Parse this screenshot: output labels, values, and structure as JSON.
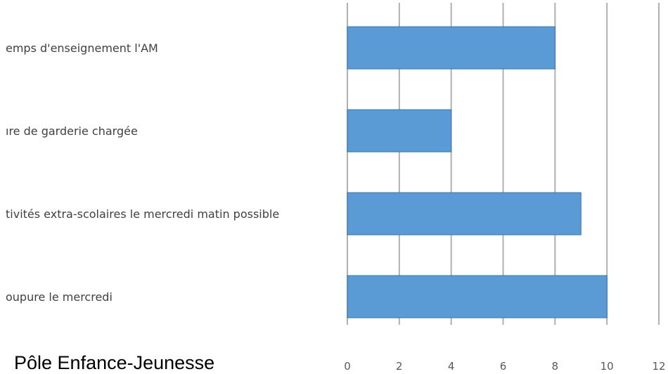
{
  "footer": {
    "text": "Pôle Enfance-Jeunesse"
  },
  "chart_data": {
    "type": "bar",
    "orientation": "horizontal",
    "categories": [
      "emps d'enseignement l'AM",
      "ıre de garderie chargée",
      "tivités extra-scolaires le mercredi matin possible",
      "oupure le mercredi"
    ],
    "values": [
      8,
      4,
      9,
      10
    ],
    "xlim": [
      0,
      12
    ],
    "xticks": [
      "0",
      "2",
      "4",
      "6",
      "8",
      "10",
      "12"
    ],
    "grid": "vertical",
    "bar_color": "#5b9bd5",
    "bar_edge_color": "#2e75b6",
    "grid_color": "#b0b0b0",
    "legend": "none"
  }
}
